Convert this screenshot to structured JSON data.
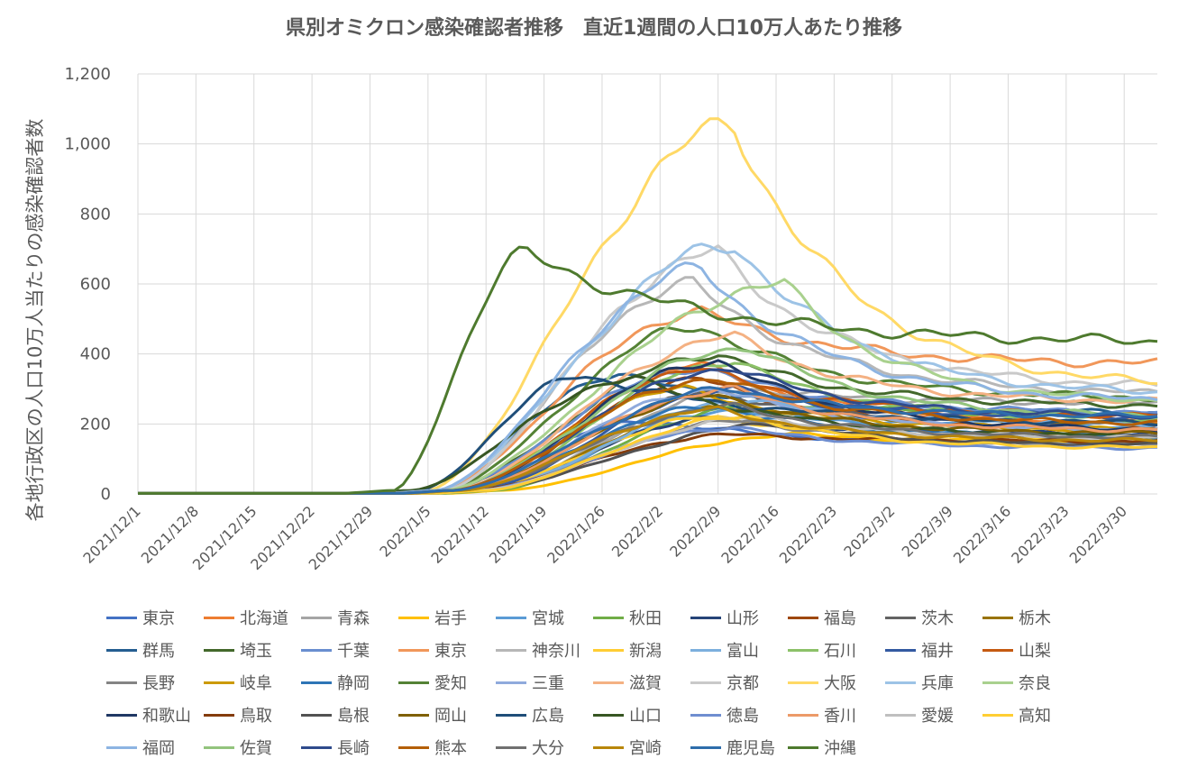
{
  "chart_data": {
    "type": "line",
    "title": "県別オミクロン感染確認者推移　直近1週間の人口10万人あたり推移",
    "ylabel": "各地行政区の人口10万人当たりの感染確認者数",
    "xlabel": "",
    "ylim": [
      0,
      1200
    ],
    "yticks": [
      0,
      200,
      400,
      600,
      800,
      1000,
      1200
    ],
    "ytick_labels": [
      "0",
      "200",
      "400",
      "600",
      "800",
      "1,000",
      "1,200"
    ],
    "xticks": [
      "2021/12/1",
      "2021/12/8",
      "2021/12/15",
      "2021/12/22",
      "2021/12/29",
      "2022/1/5",
      "2022/1/12",
      "2022/1/19",
      "2022/1/26",
      "2022/2/2",
      "2022/2/9",
      "2022/2/16",
      "2022/2/23",
      "2022/3/2",
      "2022/3/9",
      "2022/3/16",
      "2022/3/23",
      "2022/3/30"
    ],
    "x_days": 123,
    "grid": true,
    "legend_position": "bottom",
    "series": [
      {
        "name": "東京",
        "color": "#4472C4",
        "onset": 36,
        "peak_day": 62,
        "peak": 210,
        "end": 140
      },
      {
        "name": "北海道",
        "color": "#ED7D31",
        "onset": 40,
        "peak_day": 68,
        "peak": 370,
        "end": 200
      },
      {
        "name": "青森",
        "color": "#A5A5A5",
        "onset": 42,
        "peak_day": 74,
        "peak": 300,
        "end": 260
      },
      {
        "name": "岩手",
        "color": "#FFC000",
        "onset": 44,
        "peak_day": 80,
        "peak": 170,
        "end": 150
      },
      {
        "name": "宮城",
        "color": "#5B9BD5",
        "onset": 42,
        "peak_day": 72,
        "peak": 240,
        "end": 190
      },
      {
        "name": "秋田",
        "color": "#70AD47",
        "onset": 43,
        "peak_day": 76,
        "peak": 260,
        "end": 230
      },
      {
        "name": "山形",
        "color": "#264478",
        "onset": 42,
        "peak_day": 70,
        "peak": 220,
        "end": 170
      },
      {
        "name": "福島",
        "color": "#9E480E",
        "onset": 40,
        "peak_day": 68,
        "peak": 330,
        "end": 180
      },
      {
        "name": "茨木",
        "color": "#636363",
        "onset": 40,
        "peak_day": 70,
        "peak": 290,
        "end": 200
      },
      {
        "name": "栃木",
        "color": "#997300",
        "onset": 41,
        "peak_day": 72,
        "peak": 250,
        "end": 200
      },
      {
        "name": "群馬",
        "color": "#255E91",
        "onset": 36,
        "peak_day": 58,
        "peak": 340,
        "end": 230
      },
      {
        "name": "埼玉",
        "color": "#43682B",
        "onset": 37,
        "peak_day": 70,
        "peak": 400,
        "end": 250
      },
      {
        "name": "千葉",
        "color": "#698ED0",
        "onset": 37,
        "peak_day": 68,
        "peak": 360,
        "end": 230
      },
      {
        "name": "東京",
        "color": "#F1975A",
        "onset": 36,
        "peak_day": 68,
        "peak": 520,
        "end": 370
      },
      {
        "name": "神奈川",
        "color": "#B7B7B7",
        "onset": 37,
        "peak_day": 67,
        "peak": 600,
        "end": 280
      },
      {
        "name": "新潟",
        "color": "#FFCD33",
        "onset": 41,
        "peak_day": 70,
        "peak": 220,
        "end": 160
      },
      {
        "name": "富山",
        "color": "#7CAFDD",
        "onset": 42,
        "peak_day": 74,
        "peak": 270,
        "end": 200
      },
      {
        "name": "石川",
        "color": "#8CC168",
        "onset": 40,
        "peak_day": 72,
        "peak": 380,
        "end": 210
      },
      {
        "name": "福井",
        "color": "#335AA1",
        "onset": 41,
        "peak_day": 72,
        "peak": 300,
        "end": 220
      },
      {
        "name": "山梨",
        "color": "#C55A11",
        "onset": 39,
        "peak_day": 68,
        "peak": 360,
        "end": 220
      },
      {
        "name": "長野",
        "color": "#848484",
        "onset": 41,
        "peak_day": 74,
        "peak": 210,
        "end": 140
      },
      {
        "name": "岐阜",
        "color": "#CC9A00",
        "onset": 38,
        "peak_day": 66,
        "peak": 300,
        "end": 180
      },
      {
        "name": "静岡",
        "color": "#2E75B6",
        "onset": 39,
        "peak_day": 70,
        "peak": 250,
        "end": 160
      },
      {
        "name": "愛知",
        "color": "#548235",
        "onset": 37,
        "peak_day": 68,
        "peak": 480,
        "end": 270
      },
      {
        "name": "三重",
        "color": "#8FAADC",
        "onset": 39,
        "peak_day": 70,
        "peak": 300,
        "end": 180
      },
      {
        "name": "滋賀",
        "color": "#F4B183",
        "onset": 38,
        "peak_day": 72,
        "peak": 450,
        "end": 260
      },
      {
        "name": "京都",
        "color": "#C9C9C9",
        "onset": 37,
        "peak_day": 70,
        "peak": 690,
        "end": 300
      },
      {
        "name": "大阪",
        "color": "#FFD966",
        "onset": 35,
        "peak_day": 72,
        "peak": 1050,
        "end": 300
      },
      {
        "name": "兵庫",
        "color": "#9DC3E6",
        "onset": 36,
        "peak_day": 72,
        "peak": 715,
        "end": 280
      },
      {
        "name": "奈良",
        "color": "#A9D18E",
        "onset": 37,
        "peak_day": 78,
        "peak": 600,
        "end": 260
      },
      {
        "name": "和歌山",
        "color": "#203864",
        "onset": 39,
        "peak_day": 70,
        "peak": 380,
        "end": 180
      },
      {
        "name": "鳥取",
        "color": "#843C0C",
        "onset": 40,
        "peak_day": 72,
        "peak": 170,
        "end": 150
      },
      {
        "name": "島根",
        "color": "#525252",
        "onset": 41,
        "peak_day": 78,
        "peak": 200,
        "end": 140
      },
      {
        "name": "岡山",
        "color": "#7F6000",
        "onset": 39,
        "peak_day": 70,
        "peak": 280,
        "end": 170
      },
      {
        "name": "広島",
        "color": "#1F4E79",
        "onset": 34,
        "peak_day": 54,
        "peak": 340,
        "end": 200
      },
      {
        "name": "山口",
        "color": "#375623",
        "onset": 33,
        "peak_day": 60,
        "peak": 330,
        "end": 160
      },
      {
        "name": "徳島",
        "color": "#6F8ED0",
        "onset": 41,
        "peak_day": 72,
        "peak": 190,
        "end": 130
      },
      {
        "name": "香川",
        "color": "#EC9A68",
        "onset": 39,
        "peak_day": 72,
        "peak": 300,
        "end": 180
      },
      {
        "name": "愛媛",
        "color": "#BFBFBF",
        "onset": 41,
        "peak_day": 76,
        "peak": 220,
        "end": 160
      },
      {
        "name": "高知",
        "color": "#FFCE33",
        "onset": 42,
        "peak_day": 74,
        "peak": 220,
        "end": 130
      },
      {
        "name": "福岡",
        "color": "#8DB4E2",
        "onset": 36,
        "peak_day": 68,
        "peak": 640,
        "end": 260
      },
      {
        "name": "佐賀",
        "color": "#93C47D",
        "onset": 38,
        "peak_day": 74,
        "peak": 420,
        "end": 220
      },
      {
        "name": "長崎",
        "color": "#2F4B8C",
        "onset": 38,
        "peak_day": 72,
        "peak": 360,
        "end": 220
      },
      {
        "name": "熊本",
        "color": "#B45F06",
        "onset": 38,
        "peak_day": 70,
        "peak": 330,
        "end": 200
      },
      {
        "name": "大分",
        "color": "#707070",
        "onset": 39,
        "peak_day": 72,
        "peak": 250,
        "end": 160
      },
      {
        "name": "宮崎",
        "color": "#B8860B",
        "onset": 39,
        "peak_day": 70,
        "peak": 240,
        "end": 150
      },
      {
        "name": "鹿児島",
        "color": "#2E6DAB",
        "onset": 38,
        "peak_day": 72,
        "peak": 300,
        "end": 220
      },
      {
        "name": "沖縄",
        "color": "#4E7A2E",
        "onset": 31,
        "peak_day": 47,
        "peak": 685,
        "end": 430
      }
    ]
  }
}
